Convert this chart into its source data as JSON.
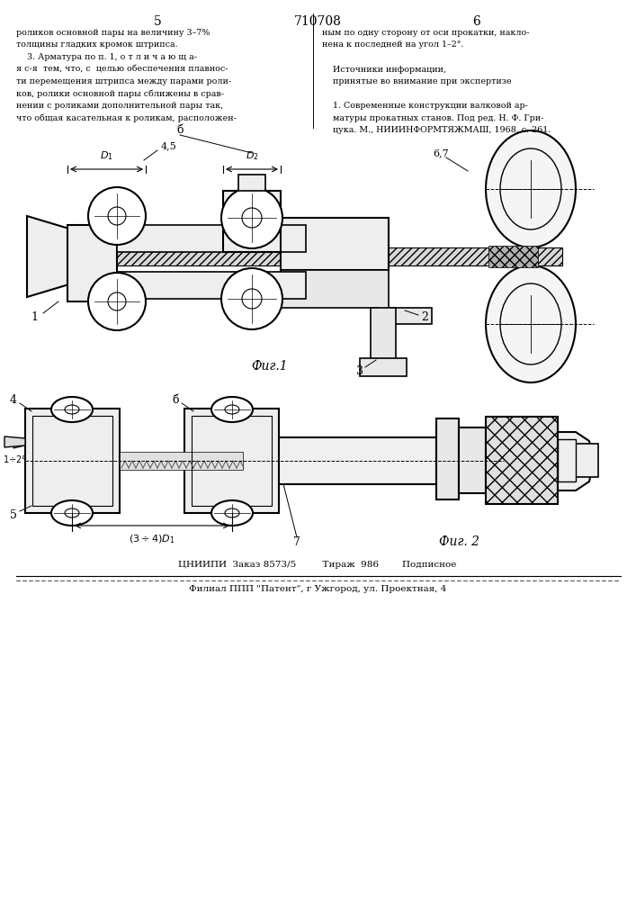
{
  "page_number_left": "5",
  "page_number_center": "710708",
  "page_number_right": "6",
  "text_col1_lines": [
    "роликов основной пары на величину 3–7%",
    "толщины гладких кромок штрипса.",
    "    3. Арматура по п. 1, о т л и ч а ю щ а-",
    "я с-я  тем, что, с  целью обеспечения плавнос-",
    "ти перемещения штрипса между парами роли-",
    "ков, ролики основной пары сближены в срав-",
    "нении с роликами дополнительной пары так,",
    "что общая касательная к роликам, расположен-"
  ],
  "text_col2_lines": [
    "ным по одну сторону от оси прокатки, накло-",
    "нена к последней на угол 1–2°.",
    "",
    "    Источники информации,",
    "    принятые во внимание при экспертизе",
    "",
    "    1. Современные конструкции валковой ар-",
    "    матуры прокатных станов. Под ред. Н. Ф. Гри-",
    "    цука. М., НИИИНФОРМТЯЖМАШ, 1968, с. 261."
  ],
  "fig1_label": "Фиг.1",
  "fig2_label": "Фиг. 2",
  "footer_line1": "ЦНИИПИ  Заказ 8573/5         Тираж  986        Подписное",
  "footer_line2": "Филиал ППП \"Патент\", г Ужгород, ул. Проектная, 4",
  "bg_color": "#ffffff",
  "text_color": "#000000",
  "line_color": "#000000"
}
